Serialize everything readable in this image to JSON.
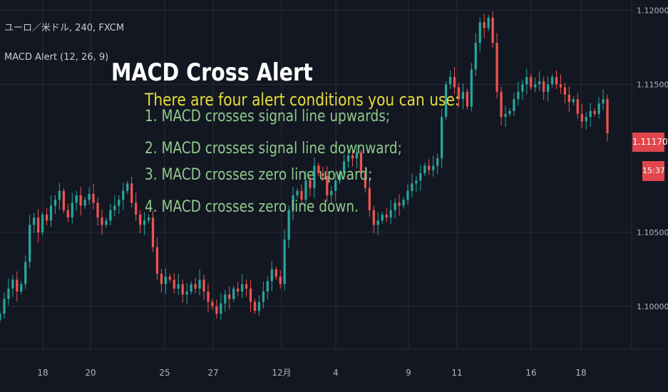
{
  "header": {
    "symbol": "ユーロ／米ドル, 240, FXCM",
    "indicator": "MACD Alert (12, 26, 9)"
  },
  "overlay": {
    "title": "MACD Cross Alert",
    "subtitle": "There are four alert conditions you can use:",
    "conditions": [
      "1. MACD crosses signal line upwards;",
      "2. MACD crosses signal line downward;",
      "3. MACD crosses zero line upward;",
      "4. MACD crosses zero line down."
    ]
  },
  "price_tag": {
    "value": "1.11170",
    "countdown": "15:37"
  },
  "colors": {
    "background": "#131722",
    "up": "#26a69a",
    "down": "#ef5350",
    "grid": "#2a2e39",
    "axis_text": "#b2b5be",
    "title": "#ffffff",
    "subtitle": "#e8dd3a",
    "conditions": "#8fc98a"
  },
  "chart_data": {
    "type": "candlestick",
    "title": "",
    "y_ticks": [
      "1.12000",
      "1.11500",
      "1.10500",
      "1.10000"
    ],
    "ylim": [
      1.0971,
      1.1207
    ],
    "x_ticks": [
      "18",
      "20",
      "25",
      "27",
      "12月",
      "4",
      "9",
      "11",
      "16",
      "18"
    ],
    "grid": true,
    "last_price": 1.1117,
    "closes": [
      1.0995,
      1.1005,
      1.1012,
      1.1018,
      1.101,
      1.1015,
      1.103,
      1.1055,
      1.106,
      1.105,
      1.1062,
      1.1058,
      1.1068,
      1.1072,
      1.1078,
      1.1065,
      1.106,
      1.107,
      1.1075,
      1.1068,
      1.1072,
      1.1076,
      1.107,
      1.106,
      1.1055,
      1.1058,
      1.1065,
      1.1068,
      1.1072,
      1.1078,
      1.1083,
      1.107,
      1.1062,
      1.1055,
      1.1058,
      1.106,
      1.104,
      1.1022,
      1.1015,
      1.102,
      1.1018,
      1.1012,
      1.1015,
      1.1008,
      1.101,
      1.1015,
      1.1012,
      1.1018,
      1.101,
      1.1003,
      1.1,
      1.0995,
      1.1002,
      1.1008,
      1.1005,
      1.1012,
      1.101,
      1.1015,
      1.1012,
      1.1003,
      1.0997,
      1.1003,
      1.101,
      1.1017,
      1.1025,
      1.102,
      1.1015,
      1.1045,
      1.1065,
      1.1075,
      1.1078,
      1.1072,
      1.1085,
      1.108,
      1.1095,
      1.109,
      1.1088,
      1.1075,
      1.1078,
      1.1085,
      1.109,
      1.1098,
      1.1102,
      1.11,
      1.1104,
      1.109,
      1.108,
      1.1065,
      1.1055,
      1.1058,
      1.1062,
      1.106,
      1.1065,
      1.107,
      1.1068,
      1.1072,
      1.1078,
      1.1083,
      1.1085,
      1.109,
      1.1095,
      1.1092,
      1.1095,
      1.11,
      1.1128,
      1.115,
      1.1155,
      1.1148,
      1.114,
      1.1145,
      1.1135,
      1.116,
      1.1178,
      1.1192,
      1.1188,
      1.1195,
      1.1178,
      1.1145,
      1.1128,
      1.113,
      1.1132,
      1.114,
      1.1145,
      1.115,
      1.1155,
      1.1148,
      1.115,
      1.1152,
      1.1145,
      1.115,
      1.1155,
      1.115,
      1.1148,
      1.1143,
      1.1138,
      1.114,
      1.113,
      1.1125,
      1.1128,
      1.1132,
      1.113,
      1.1137,
      1.114,
      1.1117
    ]
  }
}
